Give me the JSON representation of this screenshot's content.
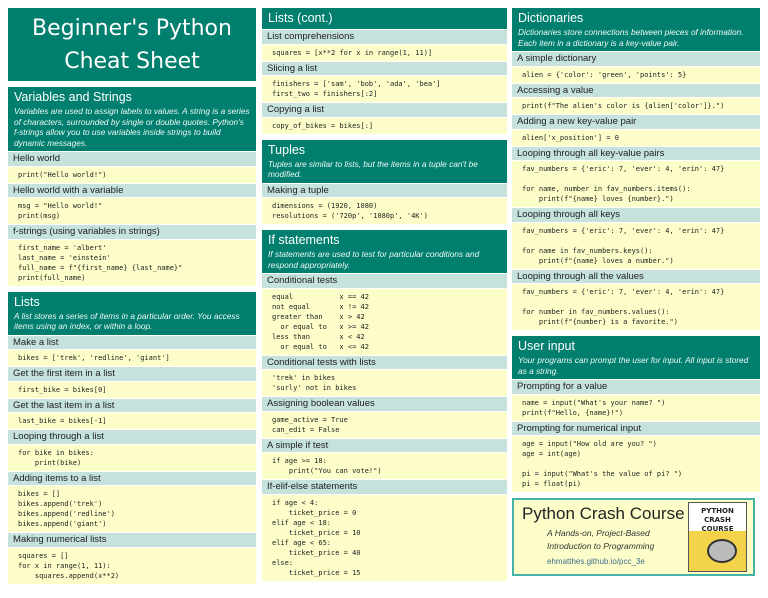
{
  "title": "Beginner's Python\nCheat Sheet",
  "columns": [
    [
      {
        "title": "Variables and Strings",
        "desc": "Variables are used to assign labels to values. A string is a series of characters, surrounded by single or double quotes. Python's f-strings allow you to use variables inside strings to build dynamic messages.",
        "items": [
          {
            "label": "Hello world",
            "code": "print(\"Hello world!\")"
          },
          {
            "label": "Hello world with a variable",
            "code": "msg = \"Hello world!\"\nprint(msg)"
          },
          {
            "label": "f-strings (using variables in strings)",
            "code": "first_name = 'albert'\nlast_name = 'einstein'\nfull_name = f\"{first_name} {last_name}\"\nprint(full_name)"
          }
        ]
      },
      {
        "title": "Lists",
        "desc": "A list stores a series of items in a particular order. You access items using an index, or within a loop.",
        "items": [
          {
            "label": "Make a list",
            "code": "bikes = ['trek', 'redline', 'giant']"
          },
          {
            "label": "Get the first item in a list",
            "code": "first_bike = bikes[0]"
          },
          {
            "label": "Get the last item in a list",
            "code": "last_bike = bikes[-1]"
          },
          {
            "label": "Looping through a list",
            "code": "for bike in bikes:\n    print(bike)"
          },
          {
            "label": "Adding items to a list",
            "code": "bikes = []\nbikes.append('trek')\nbikes.append('redline')\nbikes.append('giant')"
          },
          {
            "label": "Making numerical lists",
            "code": "squares = []\nfor x in range(1, 11):\n    squares.append(x**2)"
          }
        ]
      }
    ],
    [
      {
        "title": "Lists (cont.)",
        "desc": "",
        "items": [
          {
            "label": "List comprehensions",
            "code": "squares = [x**2 for x in range(1, 11)]"
          },
          {
            "label": "Slicing a list",
            "code": "finishers = ['sam', 'bob', 'ada', 'bea']\nfirst_two = finishers[:2]"
          },
          {
            "label": "Copying a list",
            "code": "copy_of_bikes = bikes[:]"
          }
        ]
      },
      {
        "title": "Tuples",
        "desc": "Tuples are similar to lists, but the items in a tuple can't be modified.",
        "items": [
          {
            "label": "Making a tuple",
            "code": "dimensions = (1920, 1080)\nresolutions = ('720p', '1080p', '4K')"
          }
        ]
      },
      {
        "title": "If statements",
        "desc": "If statements are used to test for particular conditions and respond appropriately.",
        "items": [
          {
            "label": "Conditional tests",
            "code": "equal           x == 42\nnot equal       x != 42\ngreater than    x > 42\n  or equal to   x >= 42\nless than       x < 42\n  or equal to   x <= 42"
          },
          {
            "label": "Conditional tests with lists",
            "code": "'trek' in bikes\n'surly' not in bikes"
          },
          {
            "label": "Assigning boolean values",
            "code": "game_active = True\ncan_edit = False"
          },
          {
            "label": "A simple if test",
            "code": "if age >= 18:\n    print(\"You can vote!\")"
          },
          {
            "label": "If-elif-else statements",
            "code": "if age < 4:\n    ticket_price = 0\nelif age < 18:\n    ticket_price = 10\nelif age < 65:\n    ticket_price = 40\nelse:\n    ticket_price = 15"
          }
        ]
      }
    ],
    [
      {
        "title": "Dictionaries",
        "desc": "Dictionaries store connections between pieces of information. Each item in a dictionary is a key-value pair.",
        "items": [
          {
            "label": "A simple dictionary",
            "code": "alien = {'color': 'green', 'points': 5}"
          },
          {
            "label": "Accessing a value",
            "code": "print(f\"The alien's color is {alien['color']}.\")"
          },
          {
            "label": "Adding a new key-value pair",
            "code": "alien['x_position'] = 0"
          },
          {
            "label": "Looping through all key-value pairs",
            "code": "fav_numbers = {'eric': 7, 'ever': 4, 'erin': 47}\n\nfor name, number in fav_numbers.items():\n    print(f\"{name} loves {number}.\")"
          },
          {
            "label": "Looping through all keys",
            "code": "fav_numbers = {'eric': 7, 'ever': 4, 'erin': 47}\n\nfor name in fav_numbers.keys():\n    print(f\"{name} loves a number.\")"
          },
          {
            "label": "Looping through all the values",
            "code": "fav_numbers = {'eric': 7, 'ever': 4, 'erin': 47}\n\nfor number in fav_numbers.values():\n    print(f\"{number} is a favorite.\")"
          }
        ]
      },
      {
        "title": "User input",
        "desc": "Your programs can prompt the user for input. All input is stored as a string.",
        "items": [
          {
            "label": "Prompting for a value",
            "code": "name = input(\"What's your name? \")\nprint(f\"Hello, {name}!\")"
          },
          {
            "label": "Prompting for numerical input",
            "code": "age = input(\"How old are you? \")\nage = int(age)\n\npi = input(\"What's the value of pi? \")\npi = float(pi)"
          }
        ]
      }
    ]
  ],
  "ad": {
    "name": "Python Crash Course",
    "subtitle": "A Hands-on, Project-Based\nIntroduction to Programming",
    "url": "ehmatthes.github.io/pcc_3e",
    "book_cover_text": "PYTHON\nCRASH COURSE"
  },
  "colors": {
    "header": "#007f6e",
    "subheader": "#c5e2dc",
    "code_bg": "#fdfdc9"
  }
}
